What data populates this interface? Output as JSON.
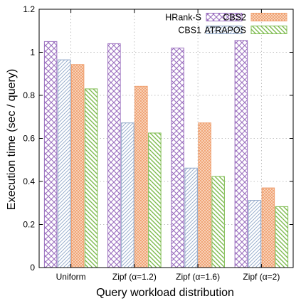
{
  "chart_data": {
    "type": "bar",
    "xlabel": "Query workload distribution",
    "ylabel": "Execution time (sec / query)",
    "ylim": [
      0,
      1.2
    ],
    "yticks": [
      "0",
      "0.2",
      "0.4",
      "0.6",
      "0.8",
      "1",
      "1.2"
    ],
    "grid": true,
    "legend_position": "top-right",
    "categories": [
      "Uniform",
      "Zipf (α=1.2)",
      "Zipf (α=1.6)",
      "Zipf (α=2)"
    ],
    "series": [
      {
        "name": "HRank-S",
        "values": [
          1.05,
          1.04,
          1.02,
          1.055
        ],
        "color": "#9B6FBF",
        "pattern": "crosshatch"
      },
      {
        "name": "CBS1",
        "values": [
          0.965,
          0.672,
          0.462,
          0.312
        ],
        "color": "#8FA6C8",
        "pattern": "diagonal-thin"
      },
      {
        "name": "CBS2",
        "values": [
          0.943,
          0.842,
          0.672,
          0.37
        ],
        "color": "#F0A070",
        "pattern": "dense-crosshatch"
      },
      {
        "name": "ATRAPOS",
        "values": [
          0.83,
          0.625,
          0.423,
          0.283
        ],
        "color": "#7DBB4E",
        "pattern": "diagonal-thick"
      }
    ]
  }
}
